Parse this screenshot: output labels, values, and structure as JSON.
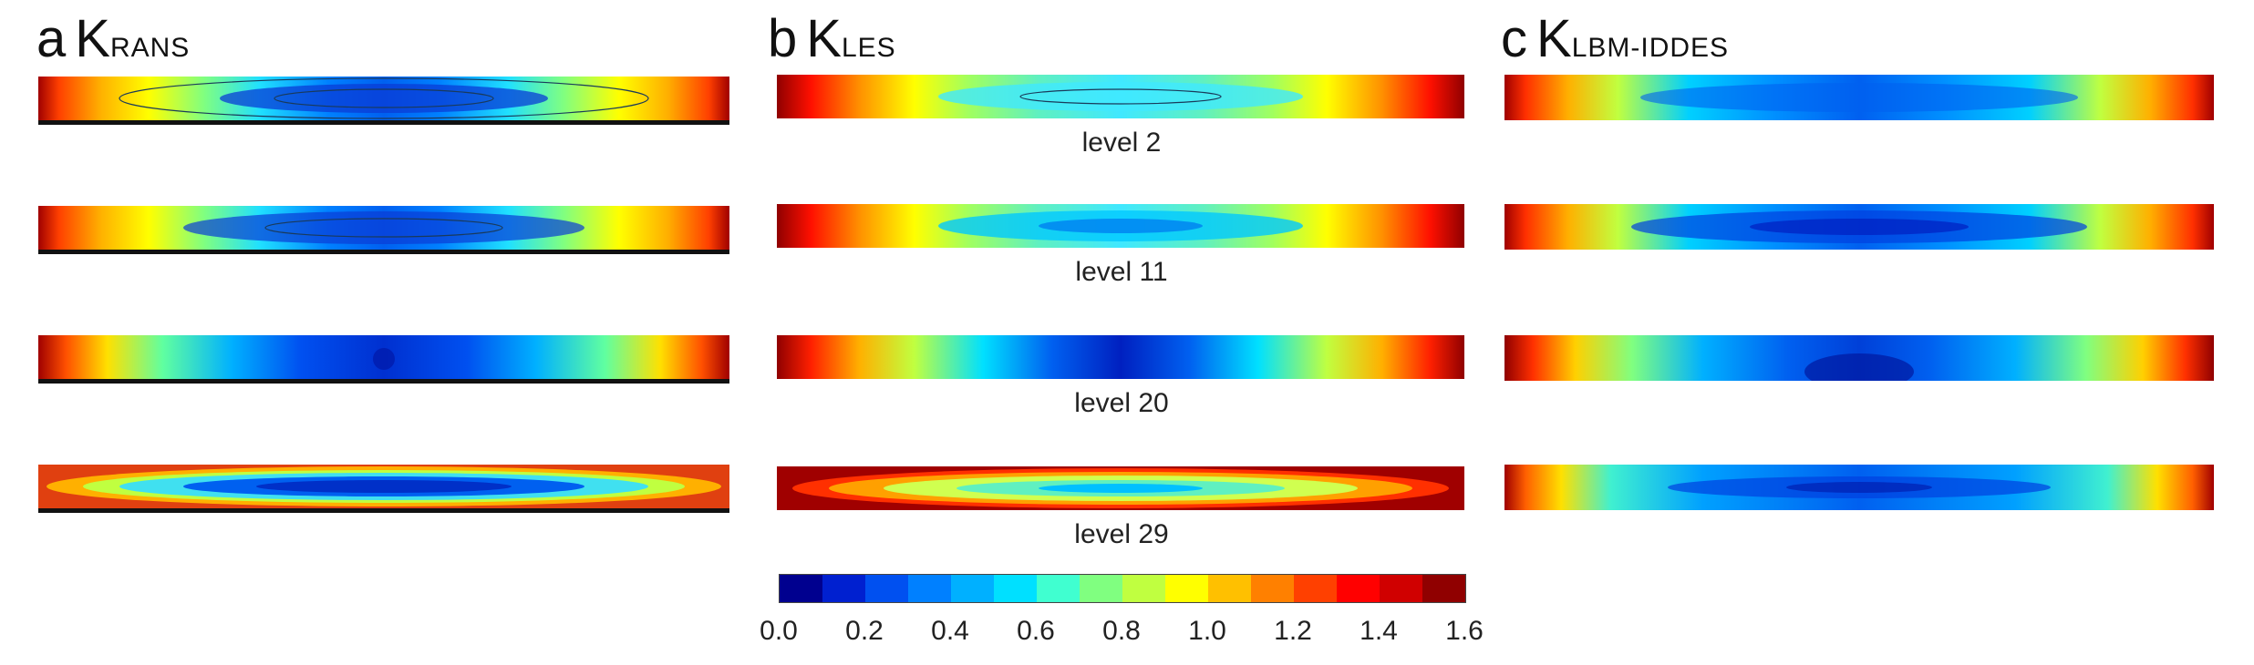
{
  "panels": [
    {
      "letter": "a",
      "k": "K",
      "sub": "RANS"
    },
    {
      "letter": "b",
      "k": "K",
      "sub": "LES"
    },
    {
      "letter": "c",
      "k": "K",
      "sub": "LBM-IDDES"
    }
  ],
  "levels": [
    "level 2",
    "level 11",
    "level 20",
    "level 29"
  ],
  "colorbar": {
    "ticks": [
      "0.0",
      "0.2",
      "0.4",
      "0.6",
      "0.8",
      "1.0",
      "1.2",
      "1.4",
      "1.6"
    ],
    "colors": [
      "#00008f",
      "#0020d0",
      "#0050f0",
      "#0080ff",
      "#00b0ff",
      "#00e0ff",
      "#40ffd0",
      "#80ff80",
      "#c0ff40",
      "#ffff00",
      "#ffc000",
      "#ff8000",
      "#ff4000",
      "#ff0000",
      "#d00000",
      "#900000"
    ]
  }
}
